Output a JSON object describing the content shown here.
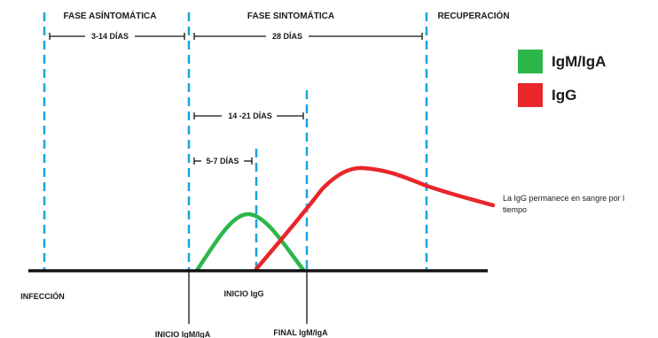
{
  "phases": {
    "asymptomatic": "FASE ASÍNTOMÁTICA",
    "symptomatic": "FASE SINTOMÁTICA",
    "recovery": "RECUPERACIÓN"
  },
  "durations": {
    "incubation": "3-14 DÍAS",
    "symptomatic": "28 DÍAS",
    "igm_window": "14 -21 DÍAS",
    "igg_onset": "5-7 DÍAS"
  },
  "axis_labels": {
    "infection": "INFECCIÓN",
    "igm_start": "INICIO IgM/IgA",
    "igg_start": "INICIO IgG",
    "igm_end": "FINAL IgM/IgA"
  },
  "legend": [
    {
      "label": "IgM/IgA",
      "color": "#2db64a"
    },
    {
      "label": "IgG",
      "color": "#e8262c"
    }
  ],
  "note": [
    "La IgG permanece en sangre por l",
    "tiempo"
  ],
  "colors": {
    "phase_line": "#1aa3df",
    "igm": "#2db64a",
    "igg": "#e8262c",
    "axis": "#111111"
  }
}
